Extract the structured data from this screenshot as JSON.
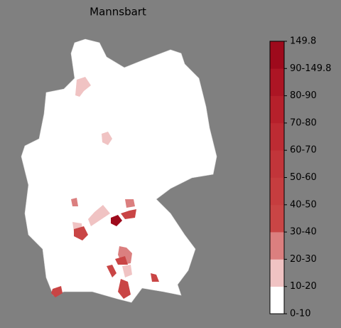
{
  "title": "Mannsbart",
  "legend": {
    "labels": [
      "0-10",
      "10-20",
      "20-30",
      "30-40",
      "40-50",
      "50-60",
      "60-70",
      "70-80",
      "80-90",
      "90-149.8",
      "149.8"
    ],
    "colors": [
      "#ffffff",
      "#f0c3c3",
      "#db7f7f",
      "#c94545",
      "#c63d3f",
      "#c2353a",
      "#bd2b33",
      "#b6202b",
      "#ac1524",
      "#9e0a1c"
    ]
  }
}
